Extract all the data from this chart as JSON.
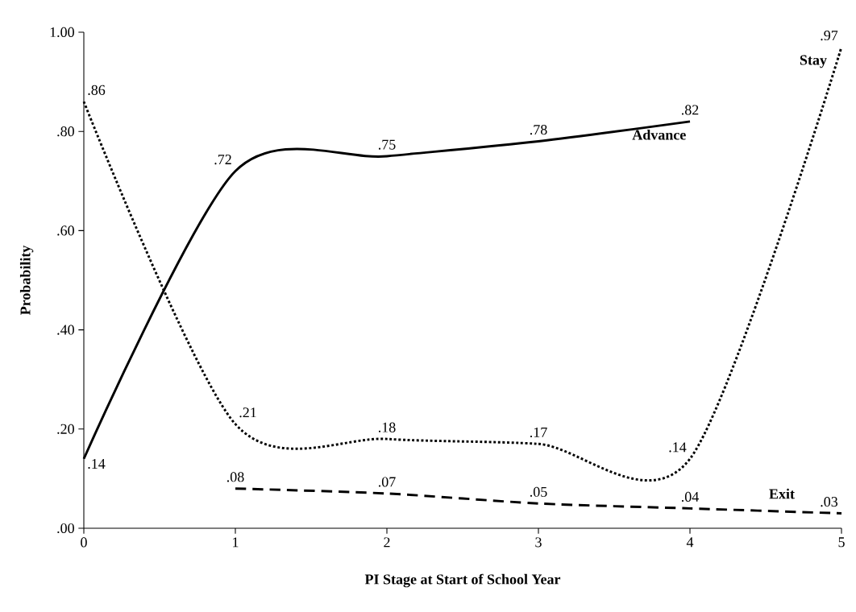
{
  "chart_data": {
    "type": "line",
    "xlabel": "PI Stage at Start of School Year",
    "ylabel": "Probability",
    "xlim": [
      0,
      5
    ],
    "ylim": [
      0,
      1
    ],
    "xticks": [
      0,
      1,
      2,
      3,
      4,
      5
    ],
    "yticks": [
      {
        "value": 0,
        "label": ".00"
      },
      {
        "value": 0.2,
        "label": ".20"
      },
      {
        "value": 0.4,
        "label": ".40"
      },
      {
        "value": 0.6,
        "label": ".60"
      },
      {
        "value": 0.8,
        "label": ".80"
      },
      {
        "value": 1,
        "label": "1.00"
      }
    ],
    "grid": false,
    "legend": false,
    "marker": "none",
    "series": [
      {
        "name": "Advance",
        "color": "#000000",
        "line_style": "solid",
        "x": [
          0,
          1,
          2,
          3,
          4
        ],
        "values": [
          0.14,
          0.72,
          0.75,
          0.78,
          0.82
        ],
        "value_labels": [
          ".14",
          ".72",
          ".75",
          ".78",
          ".82"
        ]
      },
      {
        "name": "Stay",
        "color": "#000000",
        "line_style": "dotted",
        "x": [
          0,
          1,
          2,
          3,
          4,
          5
        ],
        "values": [
          0.86,
          0.21,
          0.18,
          0.17,
          0.14,
          0.97
        ],
        "value_labels": [
          ".86",
          ".21",
          ".18",
          ".17",
          ".14",
          ".97"
        ]
      },
      {
        "name": "Exit",
        "color": "#000000",
        "line_style": "dashed",
        "x": [
          1,
          2,
          3,
          4,
          5
        ],
        "values": [
          0.08,
          0.07,
          0.05,
          0.04,
          0.03
        ],
        "value_labels": [
          ".08",
          ".07",
          ".05",
          ".04",
          ".03"
        ]
      }
    ]
  }
}
